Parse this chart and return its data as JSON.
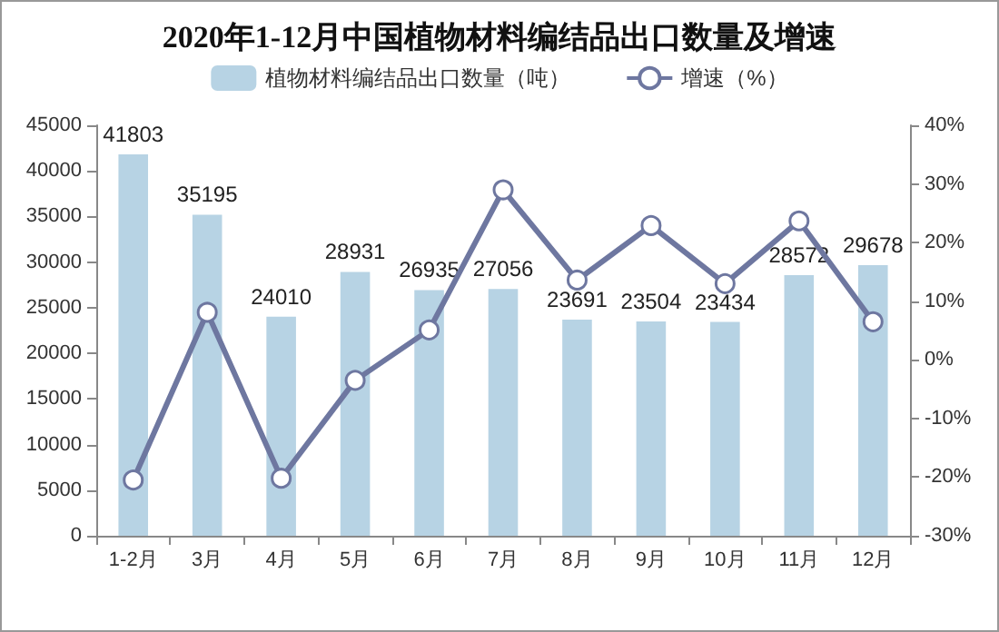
{
  "chart_data": {
    "type": "bar",
    "title": "2020年1-12月中国植物材料编结品出口数量及增速",
    "categories": [
      "1-2月",
      "3月",
      "4月",
      "5月",
      "6月",
      "7月",
      "8月",
      "9月",
      "10月",
      "11月",
      "12月"
    ],
    "series": [
      {
        "name": "植物材料编结品出口数量（吨）",
        "color": "#b7d3e4",
        "values": [
          41803,
          35195,
          24010,
          28931,
          26935,
          27056,
          23691,
          23504,
          23434,
          28572,
          29678
        ],
        "value_labels": [
          "41803",
          "35195",
          "24010",
          "28931",
          "26935",
          "27056",
          "23691",
          "23504",
          "23434",
          "28572",
          "29678"
        ]
      },
      {
        "name": "增速（%）",
        "type": "line",
        "axis": "y2",
        "color": "#6e77a0",
        "values": [
          -20.5,
          8.1,
          -20.2,
          -3.5,
          5.1,
          29,
          13.6,
          22.9,
          13,
          23.7,
          6.5
        ]
      }
    ],
    "ylim": [
      0,
      45000
    ],
    "yticks": [
      0,
      5000,
      10000,
      15000,
      20000,
      25000,
      30000,
      35000,
      40000,
      45000
    ],
    "y2lim": [
      -30,
      40
    ],
    "y2ticks": [
      {
        "value": -30,
        "label": "-30%"
      },
      {
        "value": -20,
        "label": "-20%"
      },
      {
        "value": -10,
        "label": "-10%"
      },
      {
        "value": 0,
        "label": "0%"
      },
      {
        "value": 10,
        "label": "10%"
      },
      {
        "value": 20,
        "label": "20%"
      },
      {
        "value": 30,
        "label": "30%"
      },
      {
        "value": 40,
        "label": "40%"
      }
    ],
    "legend": "top",
    "grid": false,
    "marker": "circle",
    "line_style": "solid"
  }
}
